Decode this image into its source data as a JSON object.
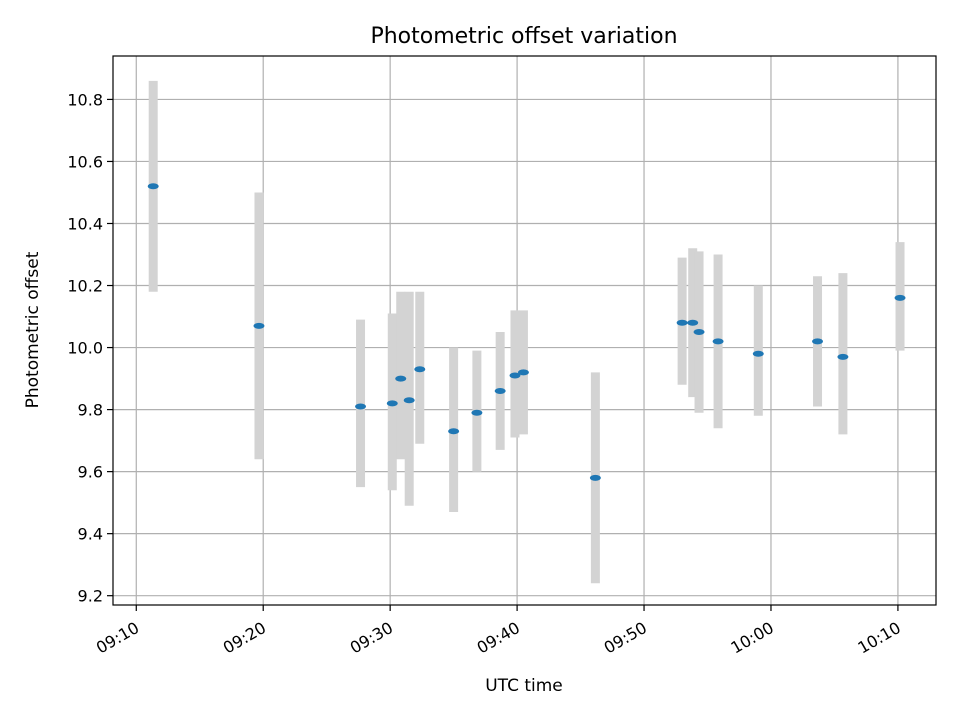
{
  "chart_data": {
    "type": "scatter",
    "title": "Photometric offset variation",
    "xlabel": "UTC time",
    "ylabel": "Photometric offset",
    "x_axis_type": "time",
    "xlim": [
      "09:08:10",
      "10:13:00"
    ],
    "ylim": [
      9.17,
      10.94
    ],
    "x_ticks": [
      "09:10",
      "09:20",
      "09:30",
      "09:40",
      "09:50",
      "10:00",
      "10:10"
    ],
    "y_ticks": [
      9.2,
      9.4,
      9.6,
      9.8,
      10.0,
      10.2,
      10.4,
      10.6,
      10.8
    ],
    "grid": true,
    "point_color": "#1f77b4",
    "error_color": "#d3d3d3",
    "points": [
      {
        "t": "09:11:20",
        "y": 10.52,
        "err_low": 10.18,
        "err_high": 10.86
      },
      {
        "t": "09:19:40",
        "y": 10.07,
        "err_low": 9.64,
        "err_high": 10.5
      },
      {
        "t": "09:27:40",
        "y": 9.81,
        "err_low": 9.55,
        "err_high": 10.09
      },
      {
        "t": "09:30:10",
        "y": 9.82,
        "err_low": 9.54,
        "err_high": 10.11
      },
      {
        "t": "09:30:50",
        "y": 9.9,
        "err_low": 9.64,
        "err_high": 10.18
      },
      {
        "t": "09:31:30",
        "y": 9.83,
        "err_low": 9.49,
        "err_high": 10.18
      },
      {
        "t": "09:32:20",
        "y": 9.93,
        "err_low": 9.69,
        "err_high": 10.18
      },
      {
        "t": "09:35:00",
        "y": 9.73,
        "err_low": 9.47,
        "err_high": 10.0
      },
      {
        "t": "09:36:50",
        "y": 9.79,
        "err_low": 9.6,
        "err_high": 9.99
      },
      {
        "t": "09:38:40",
        "y": 9.86,
        "err_low": 9.67,
        "err_high": 10.05
      },
      {
        "t": "09:39:50",
        "y": 9.91,
        "err_low": 9.71,
        "err_high": 10.12
      },
      {
        "t": "09:40:30",
        "y": 9.92,
        "err_low": 9.72,
        "err_high": 10.12
      },
      {
        "t": "09:46:10",
        "y": 9.58,
        "err_low": 9.24,
        "err_high": 9.92
      },
      {
        "t": "09:53:00",
        "y": 10.08,
        "err_low": 9.88,
        "err_high": 10.29
      },
      {
        "t": "09:53:50",
        "y": 10.08,
        "err_low": 9.84,
        "err_high": 10.32
      },
      {
        "t": "09:54:20",
        "y": 10.05,
        "err_low": 9.79,
        "err_high": 10.31
      },
      {
        "t": "09:55:50",
        "y": 10.02,
        "err_low": 9.74,
        "err_high": 10.3
      },
      {
        "t": "09:59:00",
        "y": 9.98,
        "err_low": 9.78,
        "err_high": 10.2
      },
      {
        "t": "10:03:40",
        "y": 10.02,
        "err_low": 9.81,
        "err_high": 10.23
      },
      {
        "t": "10:05:40",
        "y": 9.97,
        "err_low": 9.72,
        "err_high": 10.24
      },
      {
        "t": "10:10:10",
        "y": 10.16,
        "err_low": 9.99,
        "err_high": 10.34
      }
    ]
  }
}
